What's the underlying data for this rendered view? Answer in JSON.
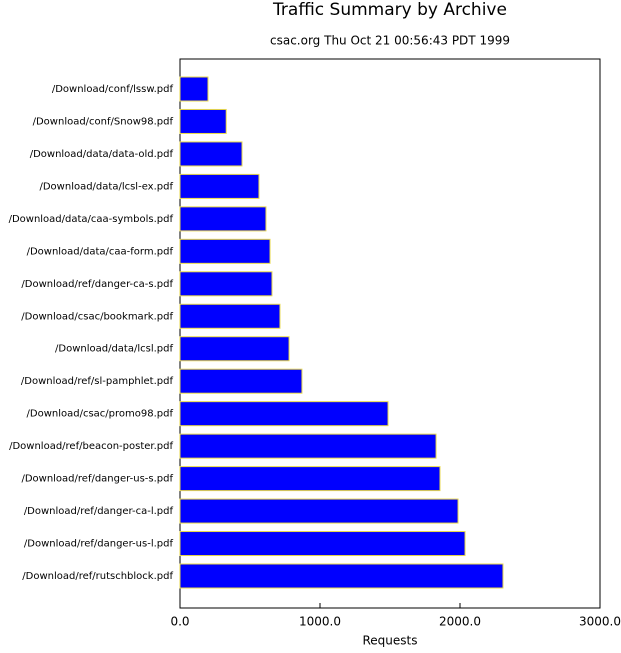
{
  "chart_data": {
    "type": "bar",
    "orientation": "horizontal",
    "title": "Traffic Summary by Archive",
    "subtitle": "csac.org Thu Oct 21 00:56:43 PDT 1999",
    "x_label": "Requests",
    "categories": [
      "/Download/conf/lssw.pdf",
      "/Download/conf/Snow98.pdf",
      "/Download/data/data-old.pdf",
      "/Download/data/lcsl-ex.pdf",
      "/Download/data/caa-symbols.pdf",
      "/Download/data/caa-form.pdf",
      "/Download/ref/danger-ca-s.pdf",
      "/Download/csac/bookmark.pdf",
      "/Download/data/lcsl.pdf",
      "/Download/ref/sl-pamphlet.pdf",
      "/Download/csac/promo98.pdf",
      "/Download/ref/beacon-poster.pdf",
      "/Download/ref/danger-us-s.pdf",
      "/Download/ref/danger-ca-l.pdf",
      "/Download/ref/danger-us-l.pdf",
      "/Download/ref/rutschblock.pdf"
    ],
    "values": [
      200,
      330,
      443,
      564,
      614,
      643,
      657,
      714,
      779,
      871,
      1486,
      1829,
      1857,
      1986,
      2036,
      2307
    ],
    "color": "#0000ff",
    "xlim": [
      0,
      3000
    ],
    "xticks": [
      {
        "value": 0,
        "label": "0.0"
      },
      {
        "value": 1000,
        "label": "1000.0"
      },
      {
        "value": 2000,
        "label": "2000.0"
      },
      {
        "value": 3000,
        "label": "3000.0"
      }
    ]
  }
}
